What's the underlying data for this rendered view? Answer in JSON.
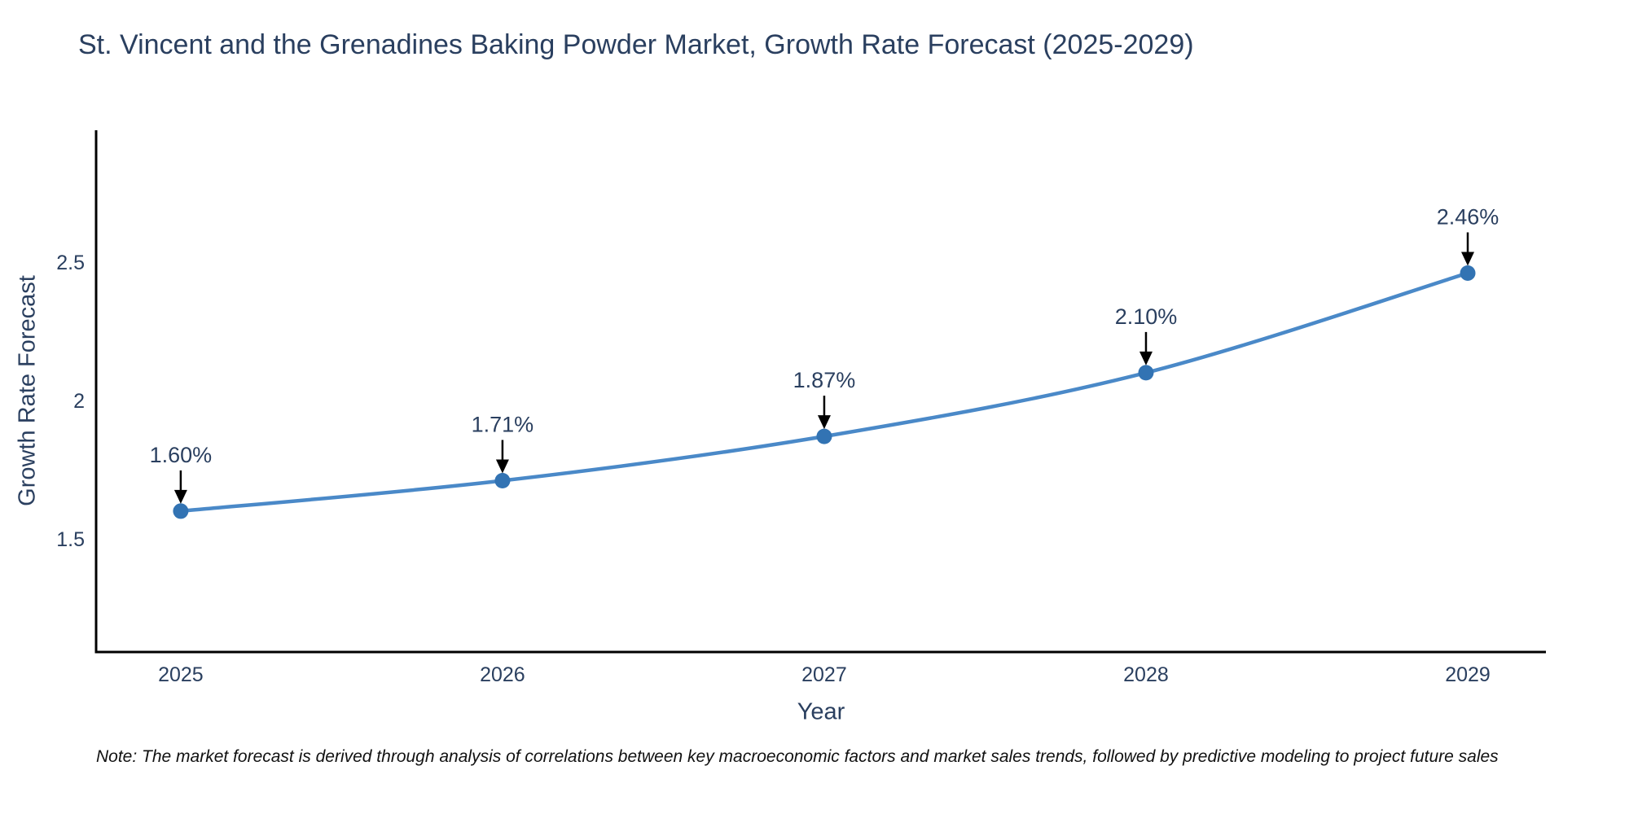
{
  "title": "St. Vincent and the Grenadines Baking Powder Market, Growth Rate Forecast (2025-2029)",
  "note": "Note: The market forecast is derived through analysis of correlations between key macroeconomic factors and market sales trends, followed by predictive modeling to project future sales",
  "colors": {
    "text": "#2a3f5f",
    "line": "#4a89c8",
    "marker": "#3273b3",
    "axis_line": "#000000",
    "annotation_text": "#2a3f5f",
    "annotation_arrow": "#000000",
    "note_text": "#111111",
    "background": "#ffffff"
  },
  "chart_data": {
    "type": "line",
    "title": "St. Vincent and the Grenadines Baking Powder Market, Growth Rate Forecast (2025-2029)",
    "xlabel": "Year",
    "ylabel": "Growth Rate Forecast",
    "x": [
      2025,
      2026,
      2027,
      2028,
      2029
    ],
    "values": [
      1.6,
      1.71,
      1.87,
      2.1,
      2.46
    ],
    "series": [
      {
        "name": "Growth Rate Forecast",
        "values": [
          1.6,
          1.71,
          1.87,
          2.1,
          2.46
        ]
      }
    ],
    "point_labels": [
      "1.60%",
      "1.71%",
      "1.87%",
      "2.10%",
      "2.46%"
    ],
    "x_tick_labels": [
      "2025",
      "2026",
      "2027",
      "2028",
      "2029"
    ],
    "y_ticks": [
      1.5,
      2,
      2.5
    ],
    "y_tick_labels": [
      "1.5",
      "2",
      "2.5"
    ],
    "xlim": [
      2024.737,
      2029.243
    ],
    "ylim": [
      1.091,
      2.976
    ],
    "grid": false,
    "legend": false,
    "line_shape": "spline",
    "annotations": "each data point labeled with percent value and a downward black arrow"
  }
}
